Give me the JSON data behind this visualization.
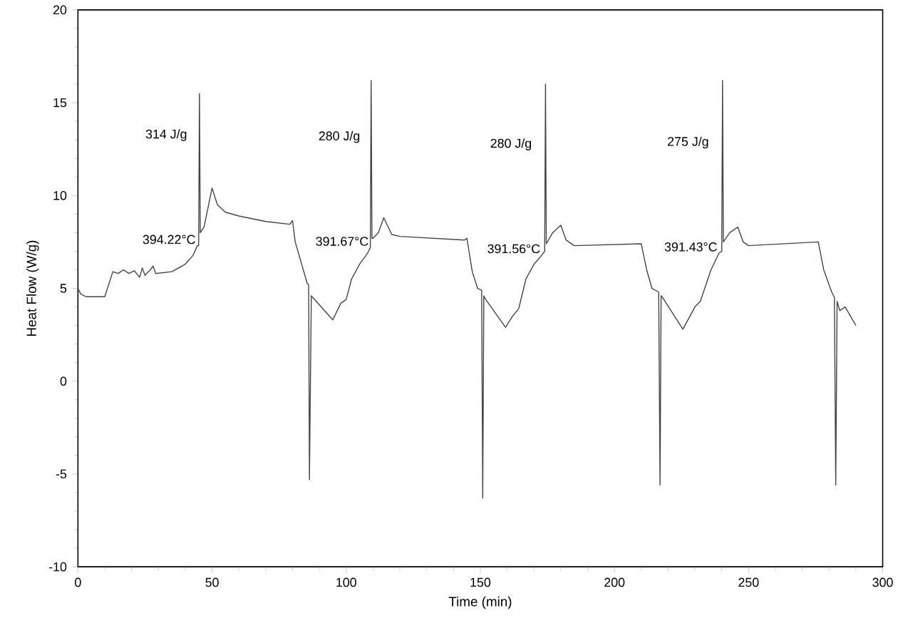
{
  "chart_data": {
    "type": "line",
    "xlabel": "Time (min)",
    "ylabel": "Heat Flow (W/g)",
    "color": "#444444",
    "xlim": [
      0,
      300
    ],
    "ylim": [
      -10,
      20
    ],
    "xticks": [
      0,
      50,
      100,
      150,
      200,
      250,
      300
    ],
    "yticks": [
      -10,
      -5,
      0,
      5,
      10,
      15,
      20
    ],
    "grid": false,
    "marker": "none",
    "line_style": "solid",
    "x": [
      0,
      1,
      3,
      10,
      13,
      15,
      17,
      19,
      21,
      23,
      24,
      25,
      27,
      28,
      29,
      35,
      40,
      43,
      44.5,
      45,
      45.3,
      45.6,
      47,
      48,
      50,
      52,
      55,
      60,
      70,
      79,
      80,
      81,
      84,
      85.5,
      86,
      86.3,
      87,
      95,
      98,
      100,
      102,
      105,
      108,
      109,
      109.3,
      109.6,
      110,
      112,
      114,
      117,
      120,
      144,
      145,
      147,
      149,
      150.5,
      150.9,
      151.3,
      152,
      159.4,
      162,
      164.3,
      167,
      170,
      173,
      174,
      174.3,
      174.6,
      177,
      180,
      182,
      185,
      210,
      212,
      214,
      216.5,
      217,
      217.4,
      218,
      225.5,
      230,
      232,
      236,
      239,
      240,
      240.3,
      240.6,
      243,
      246,
      248,
      250,
      276,
      278,
      281,
      282,
      282.5,
      283,
      284,
      286,
      290
    ],
    "values": [
      5.0,
      4.7,
      4.55,
      4.55,
      5.9,
      5.8,
      6.0,
      5.8,
      5.95,
      5.6,
      6.1,
      5.7,
      6.0,
      6.2,
      5.8,
      5.9,
      6.3,
      6.8,
      7.3,
      7.3,
      15.5,
      8.0,
      8.3,
      9.0,
      10.4,
      9.5,
      9.1,
      8.9,
      8.6,
      8.45,
      8.65,
      7.5,
      6.0,
      5.25,
      5.2,
      -5.3,
      4.6,
      3.3,
      4.2,
      4.4,
      5.5,
      6.3,
      6.9,
      7.2,
      16.2,
      7.7,
      7.7,
      8.0,
      8.8,
      7.9,
      7.8,
      7.6,
      7.7,
      5.9,
      5.0,
      4.9,
      -6.3,
      4.6,
      4.4,
      2.9,
      3.5,
      3.9,
      5.5,
      6.3,
      6.8,
      7.0,
      16.0,
      7.4,
      8.0,
      8.4,
      7.6,
      7.3,
      7.4,
      6.0,
      5.0,
      4.8,
      -5.6,
      4.6,
      4.5,
      2.8,
      4.0,
      4.3,
      6.0,
      6.9,
      7.0,
      16.2,
      7.5,
      8.0,
      8.3,
      7.5,
      7.3,
      7.5,
      6.0,
      4.8,
      4.5,
      -5.6,
      4.3,
      3.8,
      4.0,
      3.0
    ],
    "annotations": [
      "314 J/g",
      {
        "text": "394.22°C",
        "x": 44.5,
        "y": 7.3
      },
      "280 J/g",
      {
        "text": "391.67°C",
        "x": 109,
        "y": 7.2
      },
      "280 J/g",
      {
        "text": "391.56°C",
        "x": 173,
        "y": 6.8
      },
      "275 J/g",
      {
        "text": "391.43°C",
        "x": 239,
        "y": 6.9
      }
    ]
  }
}
